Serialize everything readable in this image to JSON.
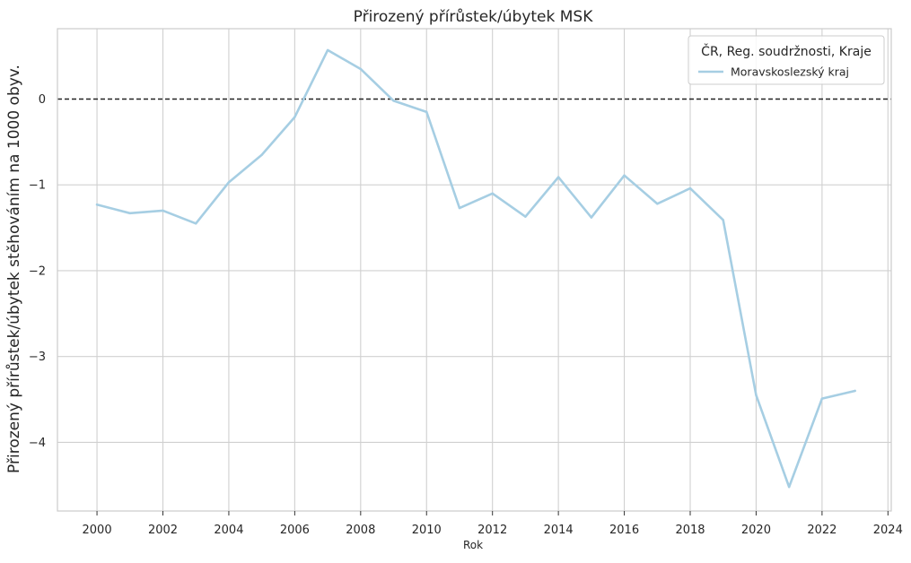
{
  "chart_data": {
    "type": "line",
    "title": "Přirozený přírůstek/úbytek MSK",
    "xlabel": "Rok",
    "ylabel": "Přirozený přírůstek/úbytek stěhováním na 1000 obyv.",
    "xlim": [
      1998.8,
      2024.1
    ],
    "ylim": [
      -4.8,
      0.82
    ],
    "x_ticks": [
      2000,
      2002,
      2004,
      2006,
      2008,
      2010,
      2012,
      2014,
      2016,
      2018,
      2020,
      2022,
      2024
    ],
    "y_ticks": [
      0,
      -1,
      -2,
      -3,
      -4
    ],
    "y_tick_labels": [
      "0",
      "−1",
      "−2",
      "−3",
      "−4"
    ],
    "grid": true,
    "reference_line": {
      "y": 0,
      "style": "dashed",
      "color": "#222222"
    },
    "legend": {
      "title": "ČR, Reg. soudržnosti, Kraje",
      "position": "top-right"
    },
    "series": [
      {
        "name": "Moravskoslezský kraj",
        "color": "#a6cee3",
        "x": [
          2000,
          2001,
          2002,
          2003,
          2004,
          2005,
          2006,
          2007,
          2008,
          2009,
          2010,
          2011,
          2012,
          2013,
          2014,
          2015,
          2016,
          2017,
          2018,
          2019,
          2020,
          2021,
          2022,
          2023
        ],
        "y": [
          -1.23,
          -1.33,
          -1.3,
          -1.45,
          -0.97,
          -0.65,
          -0.21,
          0.57,
          0.35,
          -0.02,
          -0.15,
          -1.27,
          -1.1,
          -1.37,
          -0.91,
          -1.38,
          -0.89,
          -1.22,
          -1.04,
          -1.41,
          -3.45,
          -4.52,
          -3.49,
          -3.4
        ]
      }
    ]
  }
}
